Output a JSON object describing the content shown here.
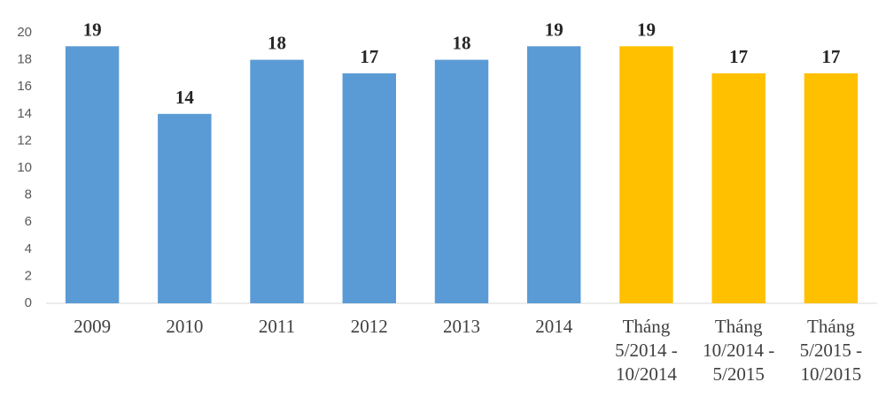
{
  "chart_data": {
    "type": "bar",
    "categories": [
      "2009",
      "2010",
      "2011",
      "2012",
      "2013",
      "2014",
      "Tháng 5/2014 - 10/2014",
      "Tháng 10/2014 - 5/2015",
      "Tháng 5/2015 - 10/2015"
    ],
    "values": [
      19,
      14,
      18,
      17,
      18,
      19,
      19,
      17,
      17
    ],
    "colors": [
      "#5b9bd5",
      "#5b9bd5",
      "#5b9bd5",
      "#5b9bd5",
      "#5b9bd5",
      "#5b9bd5",
      "#ffc000",
      "#ffc000",
      "#ffc000"
    ],
    "ylim": [
      0,
      20
    ],
    "yticks": [
      0,
      2,
      4,
      6,
      8,
      10,
      12,
      14,
      16,
      18,
      20
    ],
    "grid": false
  }
}
